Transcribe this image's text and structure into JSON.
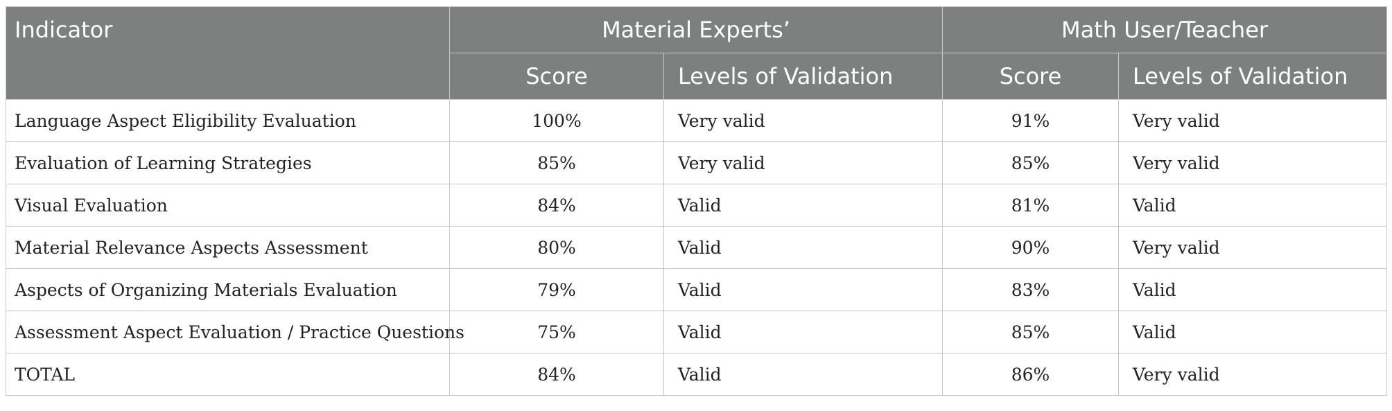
{
  "table": {
    "headers": {
      "indicator": "Indicator",
      "group1": "Material Experts’",
      "group2": "Math User/Teacher",
      "score": "Score",
      "levels": "Levels of Validation"
    },
    "rows": [
      {
        "indicator": "Language Aspect Eligibility Evaluation",
        "expert_score": "100%",
        "expert_level": "Very valid",
        "teacher_score": "91%",
        "teacher_level": "Very valid"
      },
      {
        "indicator": "Evaluation of Learning Strategies",
        "expert_score": "85%",
        "expert_level": "Very valid",
        "teacher_score": "85%",
        "teacher_level": "Very valid"
      },
      {
        "indicator": "Visual Evaluation",
        "expert_score": "84%",
        "expert_level": "Valid",
        "teacher_score": "81%",
        "teacher_level": "Valid"
      },
      {
        "indicator": "Material Relevance Aspects Assessment",
        "expert_score": "80%",
        "expert_level": "Valid",
        "teacher_score": "90%",
        "teacher_level": "Very valid"
      },
      {
        "indicator": "Aspects of Organizing Materials Evaluation",
        "expert_score": "79%",
        "expert_level": "Valid",
        "teacher_score": "83%",
        "teacher_level": "Valid"
      },
      {
        "indicator": "Assessment Aspect Evaluation / Practice Questions",
        "expert_score": "75%",
        "expert_level": "Valid",
        "teacher_score": "85%",
        "teacher_level": "Valid"
      },
      {
        "indicator": "TOTAL",
        "expert_score": "84%",
        "expert_level": "Valid",
        "teacher_score": "86%",
        "teacher_level": "Very valid"
      }
    ]
  },
  "colors": {
    "header_bg": "#7e807f",
    "header_text": "#ffffff",
    "border": "#c6c6c6"
  }
}
